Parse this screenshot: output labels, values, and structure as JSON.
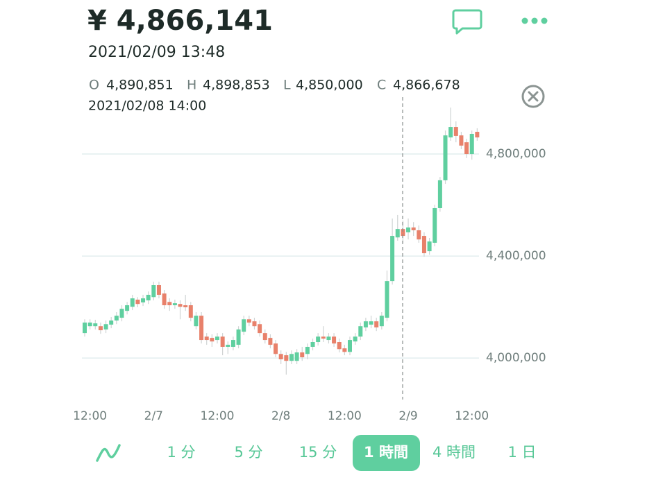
{
  "header": {
    "price": "¥ 4,866,141",
    "timestamp": "2021/02/09 13:48"
  },
  "ohlc": {
    "items": [
      {
        "key": "O",
        "value": "4,890,851"
      },
      {
        "key": "H",
        "value": "4,898,853"
      },
      {
        "key": "L",
        "value": "4,850,000"
      },
      {
        "key": "C",
        "value": "4,866,678"
      }
    ],
    "timestamp": "2021/02/08 14:00"
  },
  "chart_data": {
    "type": "candlestick",
    "categories": [
      null,
      "12:00",
      null,
      null,
      null,
      null,
      null,
      null,
      null,
      null,
      null,
      null,
      null,
      "2/7",
      null,
      null,
      null,
      null,
      null,
      null,
      null,
      null,
      null,
      null,
      null,
      "12:00",
      null,
      null,
      null,
      null,
      null,
      null,
      null,
      null,
      null,
      null,
      null,
      "2/8",
      null,
      null,
      null,
      null,
      null,
      null,
      null,
      null,
      null,
      null,
      null,
      "12:00",
      null,
      null,
      null,
      null,
      null,
      null,
      null,
      null,
      null,
      null,
      null,
      "2/9",
      null,
      null,
      null,
      null,
      null,
      null,
      null,
      null,
      null,
      null,
      null,
      "12:00",
      null
    ],
    "open": [
      4098000,
      4125000,
      4125000,
      4125000,
      4112000,
      4131000,
      4147000,
      4158000,
      4185000,
      4201000,
      4229000,
      4218000,
      4226000,
      4239000,
      4286000,
      4253000,
      4220000,
      4207000,
      4212000,
      4207000,
      4207000,
      4125000,
      4166000,
      4084000,
      4079000,
      4071000,
      4084000,
      4044000,
      4044000,
      4052000,
      4103000,
      4152000,
      4144000,
      4133000,
      4098000,
      4079000,
      4057000,
      4016000,
      4011000,
      3989000,
      3989000,
      4022000,
      4016000,
      4044000,
      4063000,
      4084000,
      4071000,
      4084000,
      4063000,
      4038000,
      4024000,
      4065000,
      4084000,
      4120000,
      4131000,
      4144000,
      4125000,
      4158000,
      4302000,
      4473000,
      4506000,
      4493000,
      4512000,
      4501000,
      4479000,
      4419000,
      4452000,
      4588000,
      4697000,
      4865000,
      4906000,
      4873000,
      4846000,
      4800000,
      4887000
    ],
    "high": [
      4152000,
      4152000,
      4150000,
      4139000,
      4147000,
      4161000,
      4180000,
      4207000,
      4220000,
      4248000,
      4239000,
      4248000,
      4261000,
      4299000,
      4299000,
      4267000,
      4234000,
      4229000,
      4226000,
      4248000,
      4220000,
      4180000,
      4180000,
      4098000,
      4093000,
      4098000,
      4098000,
      4065000,
      4084000,
      4125000,
      4166000,
      4166000,
      4158000,
      4147000,
      4112000,
      4093000,
      4071000,
      4030000,
      4024000,
      4030000,
      4035000,
      4044000,
      4057000,
      4076000,
      4098000,
      4125000,
      4098000,
      4098000,
      4076000,
      4052000,
      4084000,
      4098000,
      4139000,
      4158000,
      4166000,
      4158000,
      4180000,
      4343000,
      4547000,
      4561000,
      4539000,
      4547000,
      4533000,
      4520000,
      4493000,
      4471000,
      4601000,
      4710000,
      4892000,
      4982000,
      4928000,
      4887000,
      4860000,
      4892000,
      4901000
    ],
    "low": [
      4084000,
      4112000,
      4112000,
      4095000,
      4098000,
      4117000,
      4133000,
      4144000,
      4171000,
      4188000,
      4199000,
      4204000,
      4212000,
      4226000,
      4234000,
      4193000,
      4185000,
      4193000,
      4152000,
      4185000,
      4144000,
      4112000,
      4057000,
      4052000,
      4044000,
      4057000,
      4011000,
      4016000,
      4030000,
      4038000,
      4090000,
      4125000,
      4112000,
      4084000,
      4057000,
      4038000,
      4003000,
      3976000,
      3935000,
      3976000,
      3976000,
      3989000,
      3995000,
      4030000,
      4049000,
      4063000,
      4057000,
      4044000,
      4022000,
      4011000,
      4011000,
      4052000,
      4071000,
      4106000,
      4117000,
      4106000,
      4112000,
      4144000,
      4288000,
      4460000,
      4452000,
      4465000,
      4479000,
      4452000,
      4397000,
      4405000,
      4438000,
      4574000,
      4683000,
      4852000,
      4846000,
      4819000,
      4784000,
      4778000,
      4852000
    ],
    "close": [
      4139000,
      4139000,
      4136000,
      4109000,
      4133000,
      4147000,
      4166000,
      4193000,
      4207000,
      4234000,
      4212000,
      4234000,
      4248000,
      4286000,
      4248000,
      4207000,
      4207000,
      4215000,
      4201000,
      4199000,
      4158000,
      4166000,
      4071000,
      4071000,
      4065000,
      4084000,
      4044000,
      4052000,
      4071000,
      4112000,
      4152000,
      4139000,
      4125000,
      4098000,
      4071000,
      4052000,
      4016000,
      3995000,
      3989000,
      4016000,
      4022000,
      4003000,
      4044000,
      4063000,
      4084000,
      4076000,
      4084000,
      4057000,
      4035000,
      4024000,
      4071000,
      4084000,
      4125000,
      4144000,
      4144000,
      4120000,
      4166000,
      4302000,
      4479000,
      4506000,
      4479000,
      4512000,
      4501000,
      4465000,
      4411000,
      4457000,
      4588000,
      4697000,
      4873000,
      4906000,
      4871000,
      4833000,
      4800000,
      4879000,
      4865000
    ],
    "up_color": "#5fcf9f",
    "down_color": "#e8816b",
    "wick_color": "#cfd3d3",
    "ylim": [
      3840000,
      5000000
    ],
    "yticks": [
      {
        "value": 4000000,
        "label": "4,000,000"
      },
      {
        "value": 4400000,
        "label": "4,400,000"
      },
      {
        "value": 4800000,
        "label": "4,800,000"
      }
    ],
    "grid": true
  },
  "tabs": {
    "items": [
      "1 分",
      "5 分",
      "15 分",
      "1 時間",
      "4 時間",
      "1 日"
    ],
    "selected": 3
  }
}
